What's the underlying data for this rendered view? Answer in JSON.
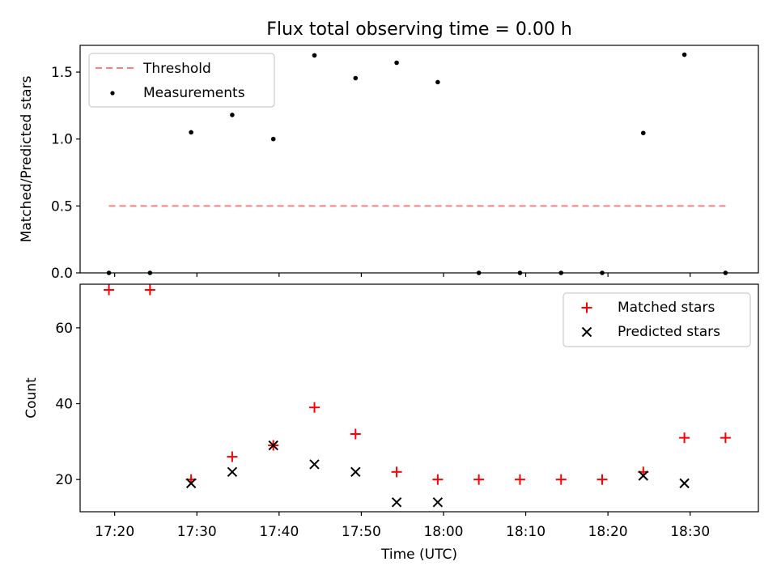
{
  "chart_data": {
    "title": "Flux total observing time = 0.00 h",
    "xlabel": "Time (UTC)",
    "x_tick_labels": [
      "17:20",
      "17:30",
      "17:40",
      "17:50",
      "18:00",
      "18:10",
      "18:20",
      "18:30"
    ],
    "x_tick_minutes": [
      1040,
      1050,
      1060,
      1070,
      1080,
      1090,
      1100,
      1110
    ],
    "xlim_minutes": [
      1035.8,
      1118.3
    ],
    "x_minutes": [
      1039.3,
      1044.3,
      1049.3,
      1054.3,
      1059.3,
      1064.3,
      1069.3,
      1074.3,
      1079.3,
      1084.3,
      1089.3,
      1094.3,
      1099.3,
      1104.3,
      1109.3,
      1114.3
    ],
    "panels": [
      {
        "type": "scatter",
        "ylabel": "Matched/Predicted stars",
        "ylim": [
          0,
          1.7
        ],
        "y_ticks": [
          0.0,
          0.5,
          1.0,
          1.5
        ],
        "y_tick_labels": [
          "0.0",
          "0.5",
          "1.0",
          "1.5"
        ],
        "legend": {
          "position": "top-left",
          "entries": [
            "Threshold",
            "Measurements"
          ]
        },
        "threshold": {
          "name": "Threshold",
          "value": 0.5,
          "x_start_minutes": 1039.3,
          "x_end_minutes": 1114.3,
          "color": "#ff7f7f"
        },
        "series": [
          {
            "name": "Measurements",
            "color": "#000000",
            "values": [
              0.0,
              0.0,
              1.05,
              1.18,
              1.0,
              1.625,
              1.455,
              1.57,
              1.425,
              0.0,
              0.0,
              0.0,
              0.0,
              1.045,
              1.63,
              0.0
            ]
          }
        ]
      },
      {
        "type": "scatter",
        "ylabel": "Count",
        "ylim": [
          11.5,
          71.5
        ],
        "y_ticks": [
          20,
          40,
          60
        ],
        "y_tick_labels": [
          "20",
          "40",
          "60"
        ],
        "legend": {
          "position": "top-right",
          "entries": [
            "Matched stars",
            "Predicted stars"
          ]
        },
        "series": [
          {
            "name": "Matched stars",
            "marker": "plus",
            "color": "#ff0000",
            "x_indices": [
              0,
              1,
              2,
              3,
              4,
              5,
              6,
              7,
              8,
              9,
              10,
              11,
              12,
              13,
              14,
              15
            ],
            "values": [
              70,
              70,
              20,
              26,
              29,
              39,
              32,
              22,
              20,
              20,
              20,
              20,
              20,
              22,
              31,
              31
            ]
          },
          {
            "name": "Predicted stars",
            "marker": "x",
            "color": "#000000",
            "x_indices": [
              2,
              3,
              4,
              5,
              6,
              7,
              8,
              13,
              14
            ],
            "values": [
              19,
              22,
              29,
              24,
              22,
              14,
              14,
              21,
              19
            ]
          }
        ]
      }
    ]
  }
}
